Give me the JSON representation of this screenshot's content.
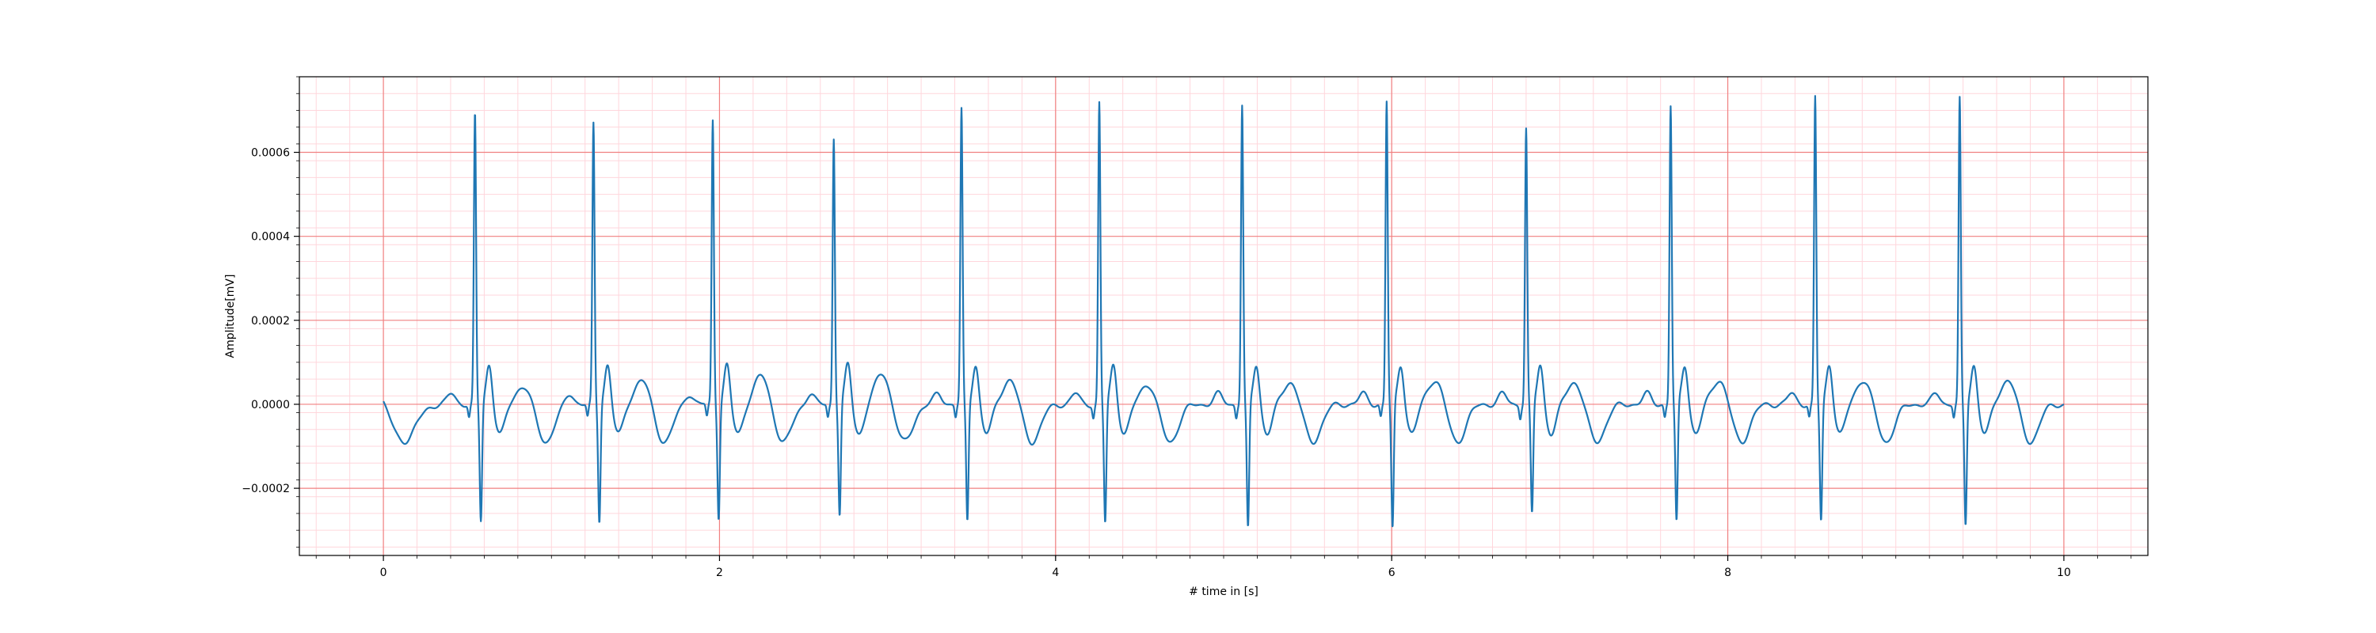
{
  "chart_data": {
    "type": "line",
    "title": "",
    "xlabel": "# time in [s]",
    "ylabel": "Amplitude[mV]",
    "xlim": [
      -0.5,
      10.5
    ],
    "ylim": [
      -0.00036,
      0.00078
    ],
    "x_ticks": [
      0,
      2,
      4,
      6,
      8,
      10
    ],
    "x_tick_labels": [
      "0",
      "2",
      "4",
      "6",
      "8",
      "10"
    ],
    "y_ticks": [
      -0.0002,
      0.0,
      0.0002,
      0.0004,
      0.0006
    ],
    "y_tick_labels": [
      "−0.0002",
      "0.0000",
      "0.0002",
      "0.0004",
      "0.0006"
    ],
    "grid": {
      "major": true,
      "minor": true,
      "major_color": "#f08080",
      "minor_color": "#ffd6dc"
    },
    "line_color": "#1f77b4",
    "legend": "none",
    "beats": [
      {
        "t": 0.545,
        "r": 0.00069,
        "s": -0.00028,
        "t_wave": 4.5e-05
      },
      {
        "t": 1.25,
        "r": 0.000665,
        "s": -0.00028,
        "t_wave": 6e-05
      },
      {
        "t": 1.96,
        "r": 0.000675,
        "s": -0.00027,
        "t_wave": 7e-05
      },
      {
        "t": 2.68,
        "r": 0.000635,
        "s": -0.000265,
        "t_wave": 7.5e-05
      },
      {
        "t": 3.44,
        "r": 0.0007,
        "s": -0.00028,
        "t_wave": 6e-05
      },
      {
        "t": 4.26,
        "r": 0.000715,
        "s": -0.000285,
        "t_wave": 5e-05
      },
      {
        "t": 5.11,
        "r": 0.00071,
        "s": -0.0003,
        "t_wave": 5.5e-05
      },
      {
        "t": 5.97,
        "r": 0.00072,
        "s": -0.0003,
        "t_wave": 6e-05
      },
      {
        "t": 6.8,
        "r": 0.000655,
        "s": -0.000265,
        "t_wave": 5.5e-05
      },
      {
        "t": 7.66,
        "r": 0.00071,
        "s": -0.000285,
        "t_wave": 6e-05
      },
      {
        "t": 8.52,
        "r": 0.00073,
        "s": -0.00028,
        "t_wave": 6e-05
      },
      {
        "t": 9.38,
        "r": 0.000725,
        "s": -0.00029,
        "t_wave": 6e-05
      }
    ]
  }
}
